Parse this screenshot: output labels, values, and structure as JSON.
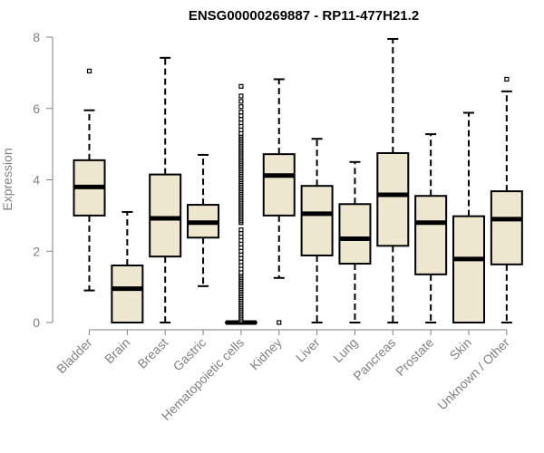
{
  "chart_data": {
    "type": "boxplot",
    "title": "ENSG00000269887 - RP11-477H21.2",
    "xlabel": "",
    "ylabel": "Expression",
    "ylim": [
      0,
      8
    ],
    "yticks": [
      0,
      2,
      4,
      6,
      8
    ],
    "categories": [
      "Bladder",
      "Brain",
      "Breast",
      "Gastric",
      "Hematopoietic cells",
      "Kidney",
      "Liver",
      "Lung",
      "Pancreas",
      "Prostate",
      "Skin",
      "Unknown / Other"
    ],
    "boxes": [
      {
        "min": 0.9,
        "q1": 3.0,
        "median": 3.8,
        "q3": 4.55,
        "max": 5.95,
        "outliers": [
          7.05
        ]
      },
      {
        "min": 0.0,
        "q1": 0.0,
        "median": 0.95,
        "q3": 1.6,
        "max": 3.1,
        "outliers": []
      },
      {
        "min": 0.0,
        "q1": 1.85,
        "median": 2.92,
        "q3": 4.15,
        "max": 7.42,
        "outliers": []
      },
      {
        "min": 1.02,
        "q1": 2.38,
        "median": 2.8,
        "q3": 3.3,
        "max": 4.7,
        "outliers": []
      },
      {
        "min": 0.0,
        "q1": 0.0,
        "median": 0.0,
        "q3": 0.0,
        "max": 0.0,
        "outliers": [
          0.05,
          0.1,
          0.15,
          0.2,
          0.25,
          0.3,
          0.35,
          0.4,
          0.45,
          0.5,
          0.55,
          0.6,
          0.65,
          0.7,
          0.75,
          0.8,
          0.85,
          0.9,
          0.95,
          1.0,
          1.05,
          1.1,
          1.15,
          1.2,
          1.25,
          1.3,
          1.35,
          1.4,
          1.5,
          1.6,
          1.7,
          1.8,
          1.9,
          2.0,
          2.1,
          2.2,
          2.3,
          2.4,
          2.5,
          2.6,
          2.8,
          2.85,
          2.9,
          2.95,
          3.0,
          3.05,
          3.1,
          3.15,
          3.2,
          3.25,
          3.3,
          3.35,
          3.4,
          3.45,
          3.5,
          3.55,
          3.6,
          3.65,
          3.7,
          3.75,
          3.8,
          3.85,
          3.9,
          3.95,
          4.0,
          4.05,
          4.1,
          4.15,
          4.2,
          4.25,
          4.3,
          4.35,
          4.4,
          4.45,
          4.5,
          4.55,
          4.6,
          4.65,
          4.7,
          4.75,
          4.8,
          4.85,
          4.9,
          4.95,
          5.0,
          5.05,
          5.1,
          5.15,
          5.2,
          5.25,
          5.3,
          5.4,
          5.5,
          5.6,
          5.7,
          5.8,
          5.9,
          6.05,
          6.2,
          6.35,
          6.62
        ]
      },
      {
        "min": 1.25,
        "q1": 3.0,
        "median": 4.12,
        "q3": 4.72,
        "max": 6.82,
        "outliers": [
          0.0
        ]
      },
      {
        "min": 0.0,
        "q1": 1.88,
        "median": 3.05,
        "q3": 3.83,
        "max": 5.15,
        "outliers": []
      },
      {
        "min": 0.0,
        "q1": 1.65,
        "median": 2.35,
        "q3": 3.32,
        "max": 4.5,
        "outliers": []
      },
      {
        "min": 0.0,
        "q1": 2.15,
        "median": 3.58,
        "q3": 4.75,
        "max": 7.95,
        "outliers": []
      },
      {
        "min": 0.0,
        "q1": 1.35,
        "median": 2.8,
        "q3": 3.55,
        "max": 5.28,
        "outliers": []
      },
      {
        "min": 0.0,
        "q1": 0.0,
        "median": 1.78,
        "q3": 2.98,
        "max": 5.88,
        "outliers": []
      },
      {
        "min": 0.0,
        "q1": 1.63,
        "median": 2.9,
        "q3": 3.68,
        "max": 6.48,
        "outliers": [
          6.82
        ]
      }
    ]
  }
}
